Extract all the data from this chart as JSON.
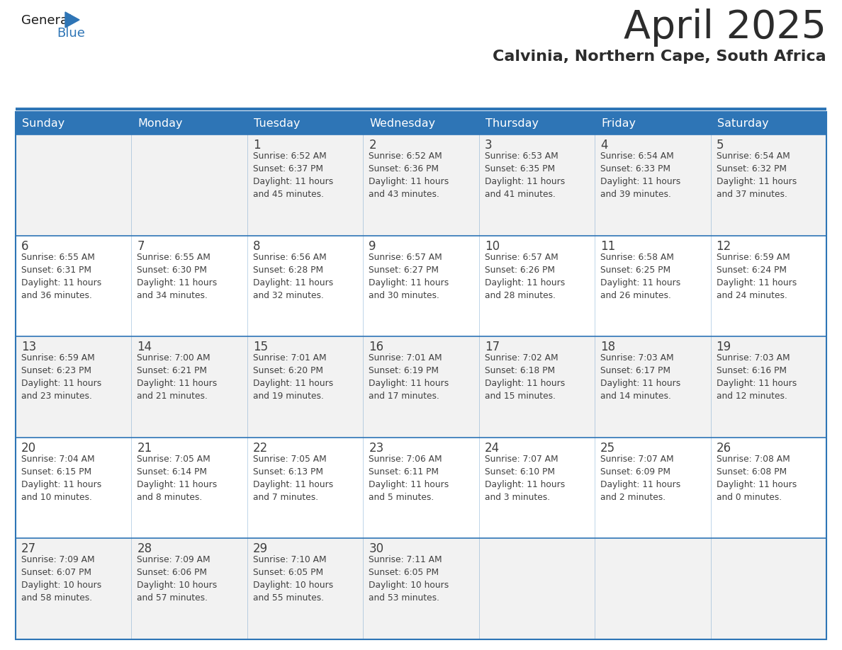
{
  "title": "April 2025",
  "subtitle": "Calvinia, Northern Cape, South Africa",
  "days_of_week": [
    "Sunday",
    "Monday",
    "Tuesday",
    "Wednesday",
    "Thursday",
    "Friday",
    "Saturday"
  ],
  "header_bg": "#2E75B6",
  "header_text": "#FFFFFF",
  "cell_bg_odd": "#F2F2F2",
  "cell_bg_even": "#FFFFFF",
  "cell_border": "#2E75B6",
  "separator_color": "#2E75B6",
  "day_num_color": "#404040",
  "text_color": "#404040",
  "title_color": "#2C2C2C",
  "subtitle_color": "#2C2C2C",
  "logo_general_color": "#1A1A1A",
  "logo_blue_color": "#2E75B6",
  "weeks": [
    [
      {
        "day": "",
        "info": ""
      },
      {
        "day": "",
        "info": ""
      },
      {
        "day": "1",
        "info": "Sunrise: 6:52 AM\nSunset: 6:37 PM\nDaylight: 11 hours\nand 45 minutes."
      },
      {
        "day": "2",
        "info": "Sunrise: 6:52 AM\nSunset: 6:36 PM\nDaylight: 11 hours\nand 43 minutes."
      },
      {
        "day": "3",
        "info": "Sunrise: 6:53 AM\nSunset: 6:35 PM\nDaylight: 11 hours\nand 41 minutes."
      },
      {
        "day": "4",
        "info": "Sunrise: 6:54 AM\nSunset: 6:33 PM\nDaylight: 11 hours\nand 39 minutes."
      },
      {
        "day": "5",
        "info": "Sunrise: 6:54 AM\nSunset: 6:32 PM\nDaylight: 11 hours\nand 37 minutes."
      }
    ],
    [
      {
        "day": "6",
        "info": "Sunrise: 6:55 AM\nSunset: 6:31 PM\nDaylight: 11 hours\nand 36 minutes."
      },
      {
        "day": "7",
        "info": "Sunrise: 6:55 AM\nSunset: 6:30 PM\nDaylight: 11 hours\nand 34 minutes."
      },
      {
        "day": "8",
        "info": "Sunrise: 6:56 AM\nSunset: 6:28 PM\nDaylight: 11 hours\nand 32 minutes."
      },
      {
        "day": "9",
        "info": "Sunrise: 6:57 AM\nSunset: 6:27 PM\nDaylight: 11 hours\nand 30 minutes."
      },
      {
        "day": "10",
        "info": "Sunrise: 6:57 AM\nSunset: 6:26 PM\nDaylight: 11 hours\nand 28 minutes."
      },
      {
        "day": "11",
        "info": "Sunrise: 6:58 AM\nSunset: 6:25 PM\nDaylight: 11 hours\nand 26 minutes."
      },
      {
        "day": "12",
        "info": "Sunrise: 6:59 AM\nSunset: 6:24 PM\nDaylight: 11 hours\nand 24 minutes."
      }
    ],
    [
      {
        "day": "13",
        "info": "Sunrise: 6:59 AM\nSunset: 6:23 PM\nDaylight: 11 hours\nand 23 minutes."
      },
      {
        "day": "14",
        "info": "Sunrise: 7:00 AM\nSunset: 6:21 PM\nDaylight: 11 hours\nand 21 minutes."
      },
      {
        "day": "15",
        "info": "Sunrise: 7:01 AM\nSunset: 6:20 PM\nDaylight: 11 hours\nand 19 minutes."
      },
      {
        "day": "16",
        "info": "Sunrise: 7:01 AM\nSunset: 6:19 PM\nDaylight: 11 hours\nand 17 minutes."
      },
      {
        "day": "17",
        "info": "Sunrise: 7:02 AM\nSunset: 6:18 PM\nDaylight: 11 hours\nand 15 minutes."
      },
      {
        "day": "18",
        "info": "Sunrise: 7:03 AM\nSunset: 6:17 PM\nDaylight: 11 hours\nand 14 minutes."
      },
      {
        "day": "19",
        "info": "Sunrise: 7:03 AM\nSunset: 6:16 PM\nDaylight: 11 hours\nand 12 minutes."
      }
    ],
    [
      {
        "day": "20",
        "info": "Sunrise: 7:04 AM\nSunset: 6:15 PM\nDaylight: 11 hours\nand 10 minutes."
      },
      {
        "day": "21",
        "info": "Sunrise: 7:05 AM\nSunset: 6:14 PM\nDaylight: 11 hours\nand 8 minutes."
      },
      {
        "day": "22",
        "info": "Sunrise: 7:05 AM\nSunset: 6:13 PM\nDaylight: 11 hours\nand 7 minutes."
      },
      {
        "day": "23",
        "info": "Sunrise: 7:06 AM\nSunset: 6:11 PM\nDaylight: 11 hours\nand 5 minutes."
      },
      {
        "day": "24",
        "info": "Sunrise: 7:07 AM\nSunset: 6:10 PM\nDaylight: 11 hours\nand 3 minutes."
      },
      {
        "day": "25",
        "info": "Sunrise: 7:07 AM\nSunset: 6:09 PM\nDaylight: 11 hours\nand 2 minutes."
      },
      {
        "day": "26",
        "info": "Sunrise: 7:08 AM\nSunset: 6:08 PM\nDaylight: 11 hours\nand 0 minutes."
      }
    ],
    [
      {
        "day": "27",
        "info": "Sunrise: 7:09 AM\nSunset: 6:07 PM\nDaylight: 10 hours\nand 58 minutes."
      },
      {
        "day": "28",
        "info": "Sunrise: 7:09 AM\nSunset: 6:06 PM\nDaylight: 10 hours\nand 57 minutes."
      },
      {
        "day": "29",
        "info": "Sunrise: 7:10 AM\nSunset: 6:05 PM\nDaylight: 10 hours\nand 55 minutes."
      },
      {
        "day": "30",
        "info": "Sunrise: 7:11 AM\nSunset: 6:05 PM\nDaylight: 10 hours\nand 53 minutes."
      },
      {
        "day": "",
        "info": ""
      },
      {
        "day": "",
        "info": ""
      },
      {
        "day": "",
        "info": ""
      }
    ]
  ]
}
